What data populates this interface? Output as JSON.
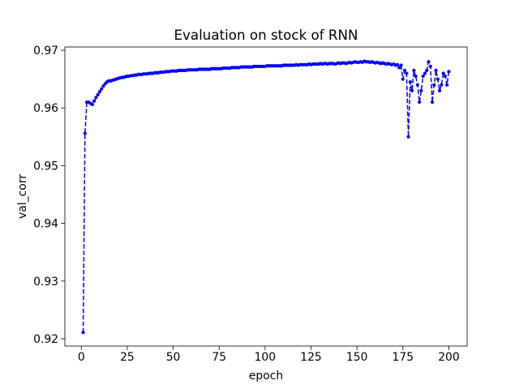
{
  "chart_data": {
    "type": "line",
    "title": "Evaluation on stock of RNN",
    "x_label": "epoch",
    "y_label": "val_corr",
    "xlim": [
      -8.95,
      209.95
    ],
    "ylim": [
      0.91874,
      0.97056
    ],
    "xticks": [
      0,
      25,
      50,
      75,
      100,
      125,
      150,
      175,
      200
    ],
    "yticks": [
      0.92,
      0.93,
      0.94,
      0.95,
      0.96,
      0.97
    ],
    "x": [
      1,
      2,
      3,
      4,
      5,
      6,
      7,
      8,
      9,
      10,
      11,
      12,
      13,
      14,
      15,
      16,
      17,
      18,
      19,
      20,
      21,
      22,
      23,
      24,
      25,
      26,
      27,
      28,
      29,
      30,
      31,
      32,
      33,
      34,
      35,
      36,
      37,
      38,
      39,
      40,
      41,
      42,
      43,
      44,
      45,
      46,
      47,
      48,
      49,
      50,
      51,
      52,
      53,
      54,
      55,
      56,
      57,
      58,
      59,
      60,
      61,
      62,
      63,
      64,
      65,
      66,
      67,
      68,
      69,
      70,
      71,
      72,
      73,
      74,
      75,
      76,
      77,
      78,
      79,
      80,
      81,
      82,
      83,
      84,
      85,
      86,
      87,
      88,
      89,
      90,
      91,
      92,
      93,
      94,
      95,
      96,
      97,
      98,
      99,
      100,
      101,
      102,
      103,
      104,
      105,
      106,
      107,
      108,
      109,
      110,
      111,
      112,
      113,
      114,
      115,
      116,
      117,
      118,
      119,
      120,
      121,
      122,
      123,
      124,
      125,
      126,
      127,
      128,
      129,
      130,
      131,
      132,
      133,
      134,
      135,
      136,
      137,
      138,
      139,
      140,
      141,
      142,
      143,
      144,
      145,
      146,
      147,
      148,
      149,
      150,
      151,
      152,
      153,
      154,
      155,
      156,
      157,
      158,
      159,
      160,
      161,
      162,
      163,
      164,
      165,
      166,
      167,
      168,
      169,
      170,
      171,
      172,
      173,
      174,
      175,
      176,
      177,
      178,
      179,
      180,
      181,
      182,
      183,
      184,
      185,
      186,
      187,
      188,
      189,
      190,
      191,
      192,
      193,
      194,
      195,
      196,
      197,
      198,
      199,
      200
    ],
    "series": [
      {
        "color": "#0000ff",
        "values": [
          0.9211,
          0.9556,
          0.961,
          0.961,
          0.9608,
          0.9606,
          0.9612,
          0.9618,
          0.9623,
          0.9628,
          0.9633,
          0.9638,
          0.9642,
          0.9645,
          0.9647,
          0.9647,
          0.9648,
          0.9649,
          0.965,
          0.9651,
          0.9652,
          0.9653,
          0.9653,
          0.9654,
          0.9655,
          0.9655,
          0.9656,
          0.9656,
          0.9657,
          0.9657,
          0.9658,
          0.9658,
          0.9658,
          0.9659,
          0.9659,
          0.9659,
          0.966,
          0.966,
          0.966,
          0.9661,
          0.9661,
          0.9661,
          0.9662,
          0.9662,
          0.9662,
          0.9663,
          0.9663,
          0.9663,
          0.9664,
          0.9664,
          0.9664,
          0.9664,
          0.9665,
          0.9665,
          0.9665,
          0.9665,
          0.9665,
          0.9666,
          0.9666,
          0.9666,
          0.9666,
          0.9666,
          0.9666,
          0.9667,
          0.9667,
          0.9667,
          0.9667,
          0.9667,
          0.9667,
          0.9667,
          0.9668,
          0.9668,
          0.9668,
          0.9668,
          0.9668,
          0.9668,
          0.9669,
          0.9669,
          0.9669,
          0.9669,
          0.9669,
          0.967,
          0.967,
          0.967,
          0.967,
          0.967,
          0.9671,
          0.9671,
          0.9671,
          0.9671,
          0.9671,
          0.9671,
          0.9671,
          0.9672,
          0.9672,
          0.9672,
          0.9672,
          0.9672,
          0.9672,
          0.9672,
          0.9673,
          0.9673,
          0.9673,
          0.9673,
          0.9673,
          0.9673,
          0.9673,
          0.9673,
          0.9673,
          0.9674,
          0.9674,
          0.9674,
          0.9674,
          0.9674,
          0.9674,
          0.9674,
          0.9675,
          0.9674,
          0.9675,
          0.9675,
          0.9675,
          0.9675,
          0.9675,
          0.9676,
          0.9675,
          0.9676,
          0.9676,
          0.9676,
          0.9676,
          0.9677,
          0.9676,
          0.9677,
          0.9677,
          0.9676,
          0.9677,
          0.9677,
          0.9677,
          0.9676,
          0.9677,
          0.9678,
          0.9677,
          0.9678,
          0.9678,
          0.9677,
          0.9678,
          0.9679,
          0.9678,
          0.9679,
          0.968,
          0.9679,
          0.9679,
          0.968,
          0.9679,
          0.9681,
          0.968,
          0.968,
          0.9679,
          0.968,
          0.9679,
          0.9678,
          0.9679,
          0.9678,
          0.9677,
          0.9678,
          0.9677,
          0.9676,
          0.9677,
          0.9676,
          0.9675,
          0.9676,
          0.9674,
          0.9675,
          0.967,
          0.9674,
          0.965,
          0.9665,
          0.966,
          0.955,
          0.9645,
          0.963,
          0.9665,
          0.9655,
          0.964,
          0.961,
          0.963,
          0.9655,
          0.966,
          0.9665,
          0.968,
          0.9672,
          0.961,
          0.964,
          0.9665,
          0.965,
          0.963,
          0.964,
          0.966,
          0.9655,
          0.964,
          0.9663
        ]
      }
    ]
  }
}
